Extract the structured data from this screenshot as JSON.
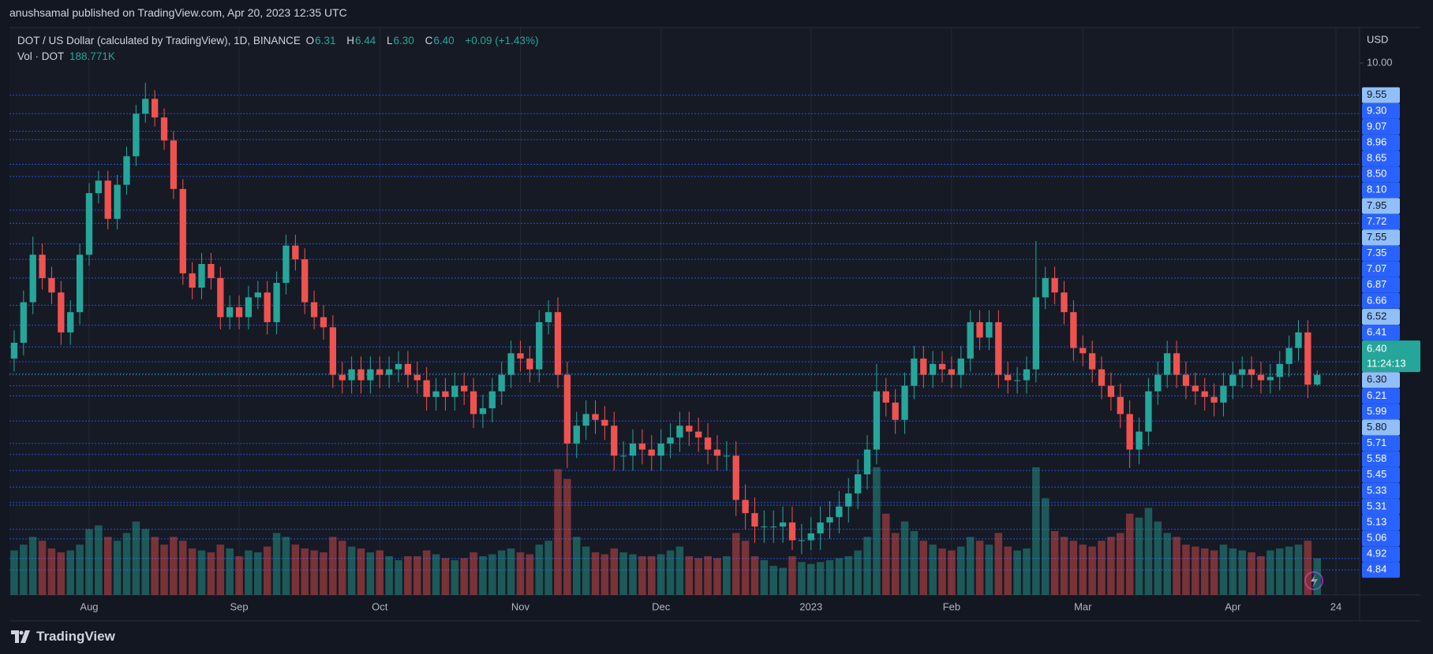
{
  "header": {
    "published": "anushsamal published on TradingView.com, Apr 20, 2023 12:35 UTC"
  },
  "chart_data": {
    "type": "candlestick",
    "title": "DOT / US Dollar (calculated by TradingView), 1D, BINANCE",
    "legend_ohlc": [
      {
        "key": "O",
        "value": "6.31"
      },
      {
        "key": "H",
        "value": "6.44"
      },
      {
        "key": "L",
        "value": "6.30"
      },
      {
        "key": "C",
        "value": "6.40"
      }
    ],
    "change": "+0.09 (+1.43%)",
    "volume_title": "Vol · DOT",
    "volume_label": "188.771K",
    "y_axis_label": "USD",
    "categories": [
      null,
      null,
      null,
      null,
      null,
      null,
      null,
      null,
      "Aug",
      null,
      null,
      null,
      null,
      null,
      null,
      null,
      null,
      null,
      null,
      null,
      null,
      null,
      null,
      null,
      "Sep",
      null,
      null,
      null,
      null,
      null,
      null,
      null,
      null,
      null,
      null,
      null,
      null,
      null,
      null,
      "Oct",
      null,
      null,
      null,
      null,
      null,
      null,
      null,
      null,
      null,
      null,
      null,
      null,
      null,
      null,
      "Nov",
      null,
      null,
      null,
      null,
      null,
      null,
      null,
      null,
      null,
      null,
      null,
      null,
      null,
      null,
      "Dec",
      null,
      null,
      null,
      null,
      null,
      null,
      null,
      null,
      null,
      null,
      null,
      null,
      null,
      null,
      null,
      "2023",
      null,
      null,
      null,
      null,
      null,
      null,
      null,
      null,
      null,
      null,
      null,
      null,
      null,
      null,
      "Feb",
      null,
      null,
      null,
      null,
      null,
      null,
      null,
      null,
      null,
      null,
      null,
      null,
      null,
      "Mar",
      null,
      null,
      null,
      null,
      null,
      null,
      null,
      null,
      null,
      null,
      null,
      null,
      null,
      null,
      null,
      "Apr",
      null,
      null,
      null,
      null,
      null,
      null,
      null,
      null,
      null,
      null,
      "24"
    ],
    "open": [
      6.55,
      6.7,
      7.1,
      7.6,
      7.35,
      7.2,
      6.8,
      7.0,
      7.6,
      8.3,
      8.45,
      8.0,
      8.4,
      8.75,
      9.3,
      9.5,
      9.25,
      8.95,
      8.35,
      7.4,
      7.25,
      7.5,
      7.35,
      6.95,
      7.05,
      6.95,
      7.15,
      7.2,
      6.9,
      7.3,
      7.7,
      7.55,
      7.1,
      6.95,
      6.85,
      6.4,
      6.35,
      6.45,
      6.35,
      6.45,
      6.4,
      6.45,
      6.5,
      6.4,
      6.35,
      6.2,
      6.25,
      6.2,
      6.3,
      6.25,
      6.05,
      6.1,
      6.25,
      6.4,
      6.6,
      6.55,
      6.45,
      6.9,
      7.0,
      6.4,
      5.8,
      5.95,
      6.05,
      6.0,
      5.95,
      5.7,
      5.7,
      5.8,
      5.75,
      5.7,
      5.8,
      5.85,
      5.95,
      5.9,
      5.85,
      5.75,
      5.7,
      5.7,
      5.35,
      5.25,
      5.15,
      5.15,
      5.15,
      5.18,
      5.05,
      5.05,
      5.1,
      5.18,
      5.22,
      5.3,
      5.4,
      5.55,
      5.75,
      6.25,
      6.15,
      6.0,
      6.3,
      6.55,
      6.4,
      6.5,
      6.45,
      6.4,
      6.55,
      6.9,
      6.75,
      6.9,
      6.4,
      6.35,
      6.35,
      6.45,
      7.15,
      7.35,
      7.2,
      7.0,
      6.65,
      6.6,
      6.45,
      6.3,
      6.2,
      6.05,
      5.75,
      5.9,
      6.25,
      6.4,
      6.6,
      6.4,
      6.3,
      6.25,
      6.2,
      6.15,
      6.3,
      6.4,
      6.45,
      6.4,
      6.35,
      6.38,
      6.5,
      6.65,
      6.8,
      6.31,
      null,
      null
    ],
    "high": [
      6.82,
      7.22,
      7.8,
      7.72,
      7.47,
      7.32,
      7.12,
      7.72,
      8.42,
      8.57,
      8.57,
      8.52,
      8.87,
      9.42,
      9.72,
      9.62,
      9.37,
      9.07,
      8.47,
      7.52,
      7.62,
      7.62,
      7.47,
      7.17,
      7.17,
      7.27,
      7.32,
      7.32,
      7.42,
      7.82,
      7.82,
      7.67,
      7.22,
      7.07,
      6.97,
      6.52,
      6.57,
      6.57,
      6.57,
      6.57,
      6.57,
      6.62,
      6.62,
      6.52,
      6.47,
      6.37,
      6.37,
      6.42,
      6.42,
      6.37,
      6.22,
      6.37,
      6.52,
      6.72,
      6.72,
      6.67,
      7.02,
      7.12,
      7.15,
      6.52,
      6.07,
      6.17,
      6.17,
      6.12,
      6.07,
      5.82,
      5.92,
      5.92,
      5.87,
      5.92,
      5.97,
      6.07,
      6.07,
      6.02,
      5.97,
      5.87,
      5.82,
      5.82,
      5.47,
      5.37,
      5.27,
      5.27,
      5.3,
      5.3,
      5.17,
      5.22,
      5.3,
      5.34,
      5.42,
      5.52,
      5.67,
      5.87,
      6.5,
      6.37,
      6.27,
      6.42,
      6.67,
      6.67,
      6.62,
      6.62,
      6.57,
      6.67,
      7.02,
      7.02,
      7.02,
      7.02,
      6.52,
      6.47,
      6.57,
      7.75,
      7.47,
      7.47,
      7.32,
      7.12,
      6.77,
      6.72,
      6.57,
      6.42,
      6.32,
      6.17,
      6.02,
      6.37,
      6.52,
      6.72,
      6.72,
      6.52,
      6.42,
      6.37,
      6.32,
      6.42,
      6.52,
      6.57,
      6.57,
      6.52,
      6.5,
      6.62,
      6.77,
      6.92,
      6.92,
      6.44,
      null,
      null
    ],
    "low": [
      6.43,
      6.58,
      6.98,
      7.23,
      7.08,
      6.68,
      6.68,
      6.88,
      7.48,
      8.18,
      7.88,
      7.88,
      8.28,
      8.63,
      9.18,
      9.13,
      8.83,
      8.23,
      7.28,
      7.13,
      7.13,
      7.23,
      6.83,
      6.83,
      6.83,
      6.83,
      7.03,
      6.78,
      6.78,
      7.18,
      7.43,
      6.98,
      6.83,
      6.73,
      6.28,
      6.23,
      6.23,
      6.23,
      6.23,
      6.28,
      6.28,
      6.33,
      6.28,
      6.23,
      6.08,
      6.08,
      6.08,
      6.08,
      6.13,
      5.93,
      5.93,
      5.98,
      6.13,
      6.28,
      6.43,
      6.33,
      6.33,
      6.78,
      6.28,
      5.6,
      5.68,
      5.83,
      5.88,
      5.83,
      5.58,
      5.58,
      5.58,
      5.63,
      5.58,
      5.58,
      5.68,
      5.73,
      5.78,
      5.73,
      5.63,
      5.58,
      5.58,
      5.23,
      5.13,
      5.03,
      5.03,
      5.03,
      5.03,
      4.98,
      4.95,
      4.98,
      4.98,
      5.06,
      5.1,
      5.18,
      5.28,
      5.43,
      5.63,
      6.03,
      5.88,
      5.88,
      6.18,
      6.28,
      6.28,
      6.33,
      6.28,
      6.28,
      6.43,
      6.63,
      6.63,
      6.28,
      6.23,
      6.23,
      6.23,
      6.33,
      7.03,
      7.08,
      6.88,
      6.53,
      6.48,
      6.33,
      6.18,
      6.08,
      5.93,
      5.6,
      5.63,
      5.78,
      6.13,
      6.28,
      6.28,
      6.18,
      6.13,
      6.08,
      6.03,
      6.03,
      6.18,
      6.28,
      6.28,
      6.23,
      6.23,
      6.26,
      6.38,
      6.53,
      6.19,
      6.3,
      null,
      null
    ],
    "close": [
      6.7,
      7.1,
      7.6,
      7.35,
      7.2,
      6.8,
      7.0,
      7.6,
      8.3,
      8.45,
      8.0,
      8.4,
      8.75,
      9.3,
      9.5,
      9.25,
      8.95,
      8.35,
      7.4,
      7.25,
      7.5,
      7.35,
      6.95,
      7.05,
      6.95,
      7.15,
      7.2,
      6.9,
      7.3,
      7.7,
      7.55,
      7.1,
      6.95,
      6.85,
      6.4,
      6.35,
      6.45,
      6.35,
      6.45,
      6.4,
      6.45,
      6.5,
      6.4,
      6.35,
      6.2,
      6.25,
      6.2,
      6.3,
      6.25,
      6.05,
      6.1,
      6.25,
      6.4,
      6.6,
      6.55,
      6.45,
      6.9,
      7.0,
      6.4,
      5.8,
      5.95,
      6.05,
      6.0,
      5.95,
      5.7,
      5.7,
      5.8,
      5.75,
      5.7,
      5.8,
      5.85,
      5.95,
      5.9,
      5.85,
      5.75,
      5.7,
      5.7,
      5.35,
      5.25,
      5.15,
      5.15,
      5.15,
      5.18,
      5.05,
      5.05,
      5.1,
      5.18,
      5.22,
      5.3,
      5.4,
      5.55,
      5.75,
      6.25,
      6.15,
      6.0,
      6.3,
      6.55,
      6.4,
      6.5,
      6.45,
      6.4,
      6.55,
      6.9,
      6.75,
      6.9,
      6.4,
      6.35,
      6.35,
      6.45,
      7.15,
      7.35,
      7.2,
      7.0,
      6.65,
      6.6,
      6.45,
      6.3,
      6.2,
      6.05,
      5.75,
      5.9,
      6.25,
      6.4,
      6.6,
      6.4,
      6.3,
      6.25,
      6.2,
      6.15,
      6.3,
      6.4,
      6.45,
      6.4,
      6.35,
      6.38,
      6.5,
      6.65,
      6.8,
      6.31,
      6.4,
      null,
      null
    ],
    "volume": [
      230000,
      260000,
      300000,
      280000,
      240000,
      220000,
      230000,
      260000,
      340000,
      360000,
      300000,
      280000,
      320000,
      380000,
      340000,
      300000,
      260000,
      300000,
      280000,
      240000,
      230000,
      220000,
      260000,
      240000,
      200000,
      230000,
      220000,
      250000,
      320000,
      300000,
      260000,
      240000,
      230000,
      220000,
      300000,
      280000,
      250000,
      240000,
      220000,
      230000,
      200000,
      180000,
      200000,
      200000,
      230000,
      210000,
      190000,
      180000,
      190000,
      220000,
      200000,
      210000,
      230000,
      240000,
      220000,
      210000,
      260000,
      280000,
      650000,
      600000,
      300000,
      250000,
      220000,
      210000,
      240000,
      220000,
      210000,
      200000,
      200000,
      210000,
      230000,
      250000,
      200000,
      190000,
      200000,
      190000,
      200000,
      320000,
      280000,
      200000,
      180000,
      150000,
      140000,
      200000,
      170000,
      160000,
      170000,
      180000,
      190000,
      200000,
      230000,
      300000,
      660000,
      420000,
      320000,
      380000,
      330000,
      280000,
      260000,
      240000,
      230000,
      250000,
      300000,
      280000,
      260000,
      320000,
      250000,
      230000,
      240000,
      660000,
      500000,
      330000,
      300000,
      280000,
      260000,
      250000,
      280000,
      300000,
      320000,
      420000,
      400000,
      450000,
      380000,
      320000,
      300000,
      260000,
      250000,
      240000,
      230000,
      260000,
      240000,
      230000,
      220000,
      200000,
      230000,
      240000,
      250000,
      260000,
      280000,
      188771,
      null,
      null
    ],
    "up_color": "#26a69a",
    "down_color": "#ef5350",
    "log_y": true,
    "ylim": [
      4.67,
      10.52
    ],
    "yticks": [
      {
        "value": 10,
        "label": "10.00"
      }
    ],
    "level_color": "#2962ff",
    "levels": [
      {
        "value": 9.55,
        "color": "#90bff9"
      },
      {
        "value": 9.3,
        "label": "9.30",
        "color": "#2962ff"
      },
      {
        "value": 9.07,
        "color": "#2962ff"
      },
      {
        "value": 8.96,
        "color": "#2962ff"
      },
      {
        "value": 8.65,
        "color": "#2962ff"
      },
      {
        "value": 8.5,
        "label": "8.50",
        "color": "#2962ff"
      },
      {
        "value": 8.1,
        "label": "8.10",
        "color": "#2962ff"
      },
      {
        "value": 7.95,
        "color": "#90bff9"
      },
      {
        "value": 7.72,
        "color": "#2962ff"
      },
      {
        "value": 7.55,
        "color": "#90bff9"
      },
      {
        "value": 7.35,
        "color": "#2962ff"
      },
      {
        "value": 7.07,
        "color": "#2962ff"
      },
      {
        "value": 6.87,
        "color": "#2962ff"
      },
      {
        "value": 6.66,
        "color": "#2962ff"
      },
      {
        "value": 6.52,
        "color": "#90bff9"
      },
      {
        "value": 6.41,
        "color": "#2962ff"
      },
      {
        "value": 6.3,
        "label": "6.30",
        "color": "#90bff9"
      },
      {
        "value": 6.21,
        "color": "#2962ff"
      },
      {
        "value": 5.99,
        "color": "#2962ff"
      },
      {
        "value": 5.8,
        "label": "5.80",
        "color": "#90bff9"
      },
      {
        "value": 5.71,
        "color": "#2962ff"
      },
      {
        "value": 5.58,
        "color": "#2962ff"
      },
      {
        "value": 5.45,
        "color": "#2962ff"
      },
      {
        "value": 5.33,
        "color": "#2962ff"
      },
      {
        "value": 5.31,
        "color": "#2962ff"
      },
      {
        "value": 5.13,
        "color": "#2962ff"
      },
      {
        "value": 5.06,
        "color": "#2962ff"
      },
      {
        "value": 4.92,
        "color": "#2962ff"
      },
      {
        "value": 4.84,
        "color": "#2962ff"
      }
    ],
    "current_price": {
      "value": 6.4,
      "label": "6.40",
      "countdown": "11:24:13"
    }
  },
  "footer": {
    "brand": "TradingView"
  }
}
